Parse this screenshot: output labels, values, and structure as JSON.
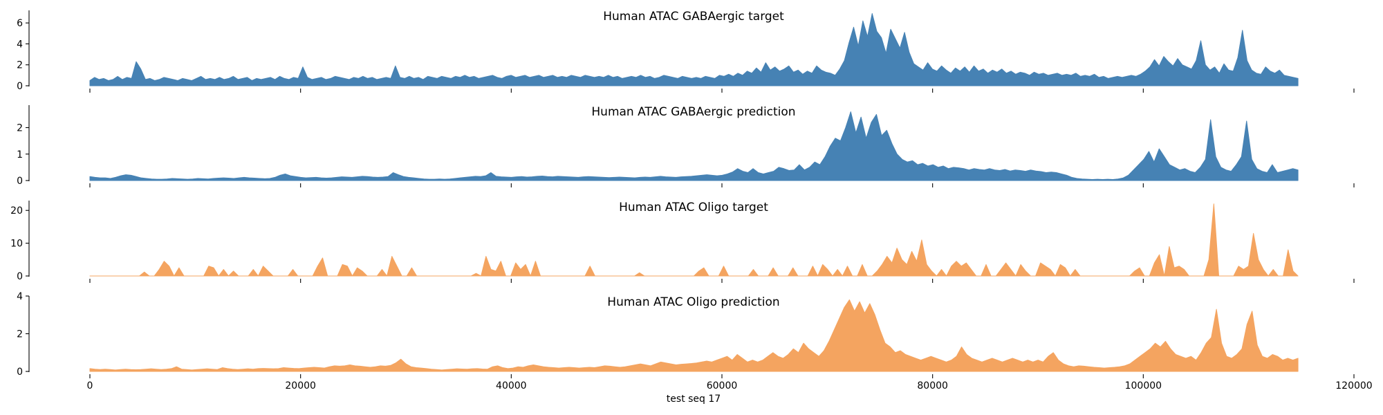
{
  "chart_data": {
    "type": "area",
    "xlabel": "test seq 17",
    "xlim": [
      0,
      120000
    ],
    "data_x_max": 114688,
    "x_ticks": [
      0,
      20000,
      40000,
      60000,
      80000,
      100000,
      120000
    ],
    "panels": [
      {
        "title": "Human ATAC GABAergic target",
        "color": "#4682b4",
        "ylim": [
          0,
          7.2
        ],
        "y_ticks": [
          0,
          2,
          4,
          6
        ],
        "values": [
          0.5,
          0.8,
          0.6,
          0.7,
          0.5,
          0.6,
          0.9,
          0.6,
          0.8,
          0.7,
          2.3,
          1.6,
          0.6,
          0.7,
          0.5,
          0.6,
          0.8,
          0.7,
          0.6,
          0.5,
          0.7,
          0.6,
          0.5,
          0.7,
          0.9,
          0.6,
          0.7,
          0.6,
          0.8,
          0.6,
          0.7,
          0.9,
          0.6,
          0.7,
          0.8,
          0.5,
          0.7,
          0.6,
          0.7,
          0.8,
          0.6,
          0.9,
          0.7,
          0.6,
          0.8,
          0.7,
          1.8,
          0.8,
          0.6,
          0.7,
          0.8,
          0.6,
          0.7,
          0.9,
          0.8,
          0.7,
          0.6,
          0.8,
          0.7,
          0.9,
          0.7,
          0.8,
          0.6,
          0.7,
          0.8,
          0.7,
          1.9,
          0.8,
          0.7,
          0.9,
          0.7,
          0.8,
          0.6,
          0.9,
          0.8,
          0.7,
          0.9,
          0.8,
          0.7,
          0.9,
          0.8,
          1.0,
          0.8,
          0.9,
          0.7,
          0.8,
          0.9,
          1.0,
          0.8,
          0.7,
          0.9,
          1.0,
          0.8,
          0.9,
          1.0,
          0.8,
          0.9,
          1.0,
          0.8,
          0.9,
          1.0,
          0.8,
          0.9,
          0.8,
          1.0,
          0.9,
          0.8,
          1.0,
          0.9,
          0.8,
          0.9,
          0.8,
          1.0,
          0.8,
          0.9,
          0.7,
          0.8,
          0.9,
          0.8,
          1.0,
          0.8,
          0.9,
          0.7,
          0.8,
          1.0,
          0.9,
          0.8,
          0.7,
          0.9,
          0.8,
          0.7,
          0.8,
          0.7,
          0.9,
          0.8,
          0.7,
          1.0,
          0.9,
          1.1,
          0.9,
          1.2,
          1.0,
          1.4,
          1.2,
          1.7,
          1.3,
          2.2,
          1.5,
          1.8,
          1.4,
          1.6,
          1.9,
          1.3,
          1.5,
          1.1,
          1.4,
          1.2,
          1.9,
          1.5,
          1.3,
          1.2,
          1.0,
          1.6,
          2.4,
          4.1,
          5.6,
          3.8,
          6.2,
          4.7,
          6.9,
          5.2,
          4.6,
          3.1,
          5.4,
          4.5,
          3.6,
          5.1,
          3.2,
          2.1,
          1.8,
          1.5,
          2.2,
          1.6,
          1.4,
          1.9,
          1.5,
          1.2,
          1.7,
          1.4,
          1.8,
          1.3,
          1.9,
          1.4,
          1.6,
          1.2,
          1.5,
          1.3,
          1.6,
          1.2,
          1.4,
          1.1,
          1.3,
          1.2,
          1.0,
          1.3,
          1.1,
          1.2,
          1.0,
          1.1,
          1.2,
          1.0,
          1.1,
          1.0,
          1.2,
          0.9,
          1.0,
          0.9,
          1.1,
          0.8,
          0.9,
          0.7,
          0.8,
          0.9,
          0.8,
          0.9,
          1.0,
          0.9,
          1.1,
          1.4,
          1.8,
          2.5,
          1.9,
          2.8,
          2.3,
          1.9,
          2.6,
          2.0,
          1.8,
          1.6,
          2.4,
          4.3,
          2.0,
          1.5,
          1.8,
          1.2,
          2.1,
          1.5,
          1.4,
          2.7,
          5.3,
          2.4,
          1.5,
          1.2,
          1.1,
          1.8,
          1.4,
          1.2,
          1.5,
          1.0,
          0.9,
          0.8,
          0.7
        ]
      },
      {
        "title": "Human ATAC GABAergic prediction",
        "color": "#4682b4",
        "ylim": [
          0,
          2.85
        ],
        "y_ticks": [
          0,
          1,
          2
        ],
        "values": [
          0.15,
          0.12,
          0.1,
          0.1,
          0.08,
          0.12,
          0.18,
          0.22,
          0.2,
          0.15,
          0.1,
          0.08,
          0.06,
          0.05,
          0.05,
          0.06,
          0.08,
          0.07,
          0.06,
          0.05,
          0.06,
          0.08,
          0.07,
          0.06,
          0.08,
          0.09,
          0.1,
          0.09,
          0.08,
          0.1,
          0.12,
          0.1,
          0.09,
          0.08,
          0.07,
          0.08,
          0.12,
          0.2,
          0.25,
          0.18,
          0.15,
          0.12,
          0.1,
          0.11,
          0.12,
          0.1,
          0.09,
          0.1,
          0.12,
          0.14,
          0.13,
          0.12,
          0.14,
          0.16,
          0.15,
          0.13,
          0.12,
          0.13,
          0.15,
          0.3,
          0.22,
          0.15,
          0.12,
          0.1,
          0.08,
          0.06,
          0.05,
          0.05,
          0.06,
          0.05,
          0.06,
          0.08,
          0.1,
          0.12,
          0.14,
          0.16,
          0.15,
          0.18,
          0.3,
          0.16,
          0.14,
          0.13,
          0.12,
          0.14,
          0.15,
          0.13,
          0.14,
          0.16,
          0.17,
          0.15,
          0.14,
          0.16,
          0.15,
          0.14,
          0.13,
          0.12,
          0.14,
          0.15,
          0.14,
          0.13,
          0.12,
          0.11,
          0.12,
          0.13,
          0.12,
          0.11,
          0.1,
          0.12,
          0.13,
          0.12,
          0.14,
          0.16,
          0.14,
          0.13,
          0.12,
          0.14,
          0.15,
          0.16,
          0.18,
          0.2,
          0.22,
          0.2,
          0.18,
          0.2,
          0.25,
          0.32,
          0.45,
          0.35,
          0.3,
          0.45,
          0.3,
          0.25,
          0.3,
          0.35,
          0.5,
          0.45,
          0.38,
          0.4,
          0.6,
          0.4,
          0.5,
          0.7,
          0.6,
          0.9,
          1.3,
          1.6,
          1.5,
          2.0,
          2.6,
          1.8,
          2.4,
          1.6,
          2.2,
          2.5,
          1.7,
          1.9,
          1.4,
          1.0,
          0.8,
          0.7,
          0.75,
          0.6,
          0.65,
          0.55,
          0.6,
          0.5,
          0.55,
          0.45,
          0.5,
          0.48,
          0.45,
          0.4,
          0.45,
          0.42,
          0.4,
          0.45,
          0.4,
          0.38,
          0.42,
          0.36,
          0.4,
          0.38,
          0.35,
          0.4,
          0.36,
          0.34,
          0.3,
          0.32,
          0.3,
          0.25,
          0.2,
          0.12,
          0.08,
          0.06,
          0.05,
          0.04,
          0.05,
          0.04,
          0.05,
          0.04,
          0.06,
          0.1,
          0.2,
          0.4,
          0.6,
          0.8,
          1.1,
          0.7,
          1.2,
          0.9,
          0.6,
          0.5,
          0.4,
          0.45,
          0.35,
          0.3,
          0.5,
          0.8,
          2.3,
          0.9,
          0.5,
          0.4,
          0.35,
          0.6,
          0.9,
          2.25,
          0.8,
          0.45,
          0.35,
          0.3,
          0.6,
          0.3,
          0.35,
          0.4,
          0.45,
          0.4
        ]
      },
      {
        "title": "Human ATAC Oligo target",
        "color": "#f4a460",
        "ylim": [
          0,
          23
        ],
        "y_ticks": [
          0,
          10,
          20
        ],
        "values": [
          0,
          0,
          0,
          0,
          0,
          0,
          0,
          0,
          0,
          0,
          0,
          1.2,
          0,
          0,
          2.0,
          4.5,
          3.0,
          0,
          2.5,
          0,
          0,
          0,
          0,
          0,
          3.0,
          2.5,
          0,
          2.0,
          0,
          1.5,
          0,
          0,
          0,
          2.0,
          0,
          3.0,
          1.5,
          0,
          0,
          0,
          0,
          2.0,
          0,
          0,
          0,
          0,
          3.0,
          5.5,
          0,
          0,
          0,
          3.5,
          3.0,
          0,
          2.5,
          1.5,
          0,
          0,
          0,
          2.0,
          0,
          6.0,
          3.0,
          0,
          0,
          2.5,
          0,
          0,
          0,
          0,
          0,
          0,
          0,
          0,
          0,
          0,
          0,
          0,
          0.8,
          0,
          6.0,
          2.0,
          1.5,
          4.5,
          0,
          0,
          4.0,
          2.0,
          3.5,
          0,
          4.5,
          0,
          0,
          0,
          0,
          0,
          0,
          0,
          0,
          0,
          0,
          3.0,
          0,
          0,
          0,
          0,
          0,
          0,
          0,
          0,
          0,
          1.0,
          0,
          0,
          0,
          0,
          0,
          0,
          0,
          0,
          0,
          0,
          0,
          1.5,
          2.5,
          0,
          0,
          0,
          3.0,
          0,
          0,
          0,
          0,
          0,
          2.0,
          0,
          0,
          0,
          2.5,
          0,
          0,
          0,
          2.5,
          0,
          0,
          0,
          3.0,
          0,
          3.5,
          2.0,
          0,
          2.0,
          0,
          3.0,
          0,
          0,
          3.5,
          0,
          0,
          1.5,
          3.5,
          6.0,
          4.0,
          8.5,
          5.0,
          3.5,
          7.5,
          4.5,
          11.0,
          3.5,
          1.5,
          0,
          2.0,
          0,
          3.0,
          4.5,
          3.0,
          4.0,
          2.0,
          0,
          0,
          3.5,
          0,
          0,
          2.0,
          4.0,
          2.0,
          0,
          3.5,
          1.5,
          0,
          0,
          4.0,
          3.0,
          2.0,
          0,
          3.5,
          2.5,
          0,
          2.0,
          0,
          0,
          0,
          0,
          0,
          0,
          0,
          0,
          0,
          0,
          0,
          1.5,
          2.5,
          0,
          0,
          4.0,
          6.5,
          0,
          9.0,
          2.5,
          3.0,
          2.0,
          0,
          0,
          0,
          0,
          5.0,
          22.0,
          0,
          0,
          0,
          0,
          3.0,
          2.0,
          3.0,
          13.0,
          5.0,
          2.0,
          0,
          2.0,
          0,
          0,
          8.0,
          1.5,
          0
        ]
      },
      {
        "title": "Human ATAC Oligo prediction",
        "color": "#f4a460",
        "ylim": [
          0,
          4.0
        ],
        "y_ticks": [
          0,
          2,
          4
        ],
        "values": [
          0.15,
          0.12,
          0.1,
          0.12,
          0.1,
          0.08,
          0.1,
          0.12,
          0.1,
          0.09,
          0.1,
          0.12,
          0.14,
          0.12,
          0.1,
          0.12,
          0.15,
          0.25,
          0.12,
          0.1,
          0.08,
          0.1,
          0.12,
          0.14,
          0.12,
          0.1,
          0.2,
          0.15,
          0.12,
          0.1,
          0.12,
          0.14,
          0.12,
          0.15,
          0.16,
          0.15,
          0.14,
          0.15,
          0.2,
          0.18,
          0.16,
          0.15,
          0.18,
          0.2,
          0.22,
          0.2,
          0.18,
          0.25,
          0.3,
          0.28,
          0.3,
          0.35,
          0.3,
          0.28,
          0.25,
          0.22,
          0.25,
          0.3,
          0.28,
          0.32,
          0.45,
          0.65,
          0.4,
          0.25,
          0.2,
          0.18,
          0.15,
          0.12,
          0.1,
          0.08,
          0.1,
          0.12,
          0.14,
          0.13,
          0.12,
          0.14,
          0.15,
          0.13,
          0.12,
          0.25,
          0.3,
          0.2,
          0.15,
          0.18,
          0.25,
          0.22,
          0.3,
          0.35,
          0.3,
          0.25,
          0.22,
          0.2,
          0.18,
          0.2,
          0.22,
          0.2,
          0.18,
          0.2,
          0.22,
          0.2,
          0.25,
          0.3,
          0.28,
          0.25,
          0.22,
          0.25,
          0.3,
          0.35,
          0.4,
          0.35,
          0.3,
          0.4,
          0.5,
          0.45,
          0.4,
          0.35,
          0.38,
          0.4,
          0.42,
          0.45,
          0.5,
          0.55,
          0.5,
          0.6,
          0.7,
          0.8,
          0.6,
          0.9,
          0.7,
          0.5,
          0.6,
          0.5,
          0.6,
          0.8,
          1.0,
          0.8,
          0.7,
          0.9,
          1.2,
          1.0,
          1.5,
          1.2,
          1.0,
          0.8,
          1.1,
          1.6,
          2.2,
          2.8,
          3.4,
          3.8,
          3.2,
          3.7,
          3.1,
          3.6,
          3.0,
          2.2,
          1.5,
          1.3,
          1.0,
          1.1,
          0.9,
          0.8,
          0.7,
          0.6,
          0.7,
          0.8,
          0.7,
          0.6,
          0.5,
          0.6,
          0.8,
          1.3,
          0.9,
          0.7,
          0.6,
          0.5,
          0.6,
          0.7,
          0.6,
          0.5,
          0.6,
          0.7,
          0.6,
          0.5,
          0.6,
          0.5,
          0.6,
          0.5,
          0.8,
          1.0,
          0.6,
          0.4,
          0.3,
          0.25,
          0.3,
          0.28,
          0.25,
          0.22,
          0.2,
          0.18,
          0.2,
          0.22,
          0.25,
          0.3,
          0.4,
          0.6,
          0.8,
          1.0,
          1.2,
          1.5,
          1.3,
          1.6,
          1.2,
          0.9,
          0.8,
          0.7,
          0.8,
          0.6,
          1.0,
          1.5,
          1.8,
          3.3,
          1.5,
          0.8,
          0.7,
          0.9,
          1.2,
          2.5,
          3.2,
          1.4,
          0.8,
          0.7,
          0.9,
          0.8,
          0.6,
          0.7,
          0.6,
          0.7
        ]
      }
    ]
  }
}
